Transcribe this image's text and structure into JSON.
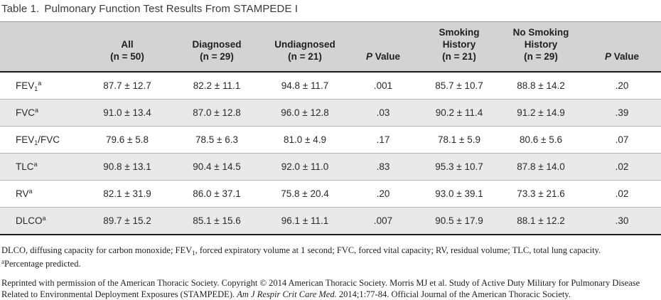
{
  "title": {
    "label": "Table 1.",
    "text": "Pulmonary Function Test Results From STAMPEDE I"
  },
  "colors": {
    "header_bg": "#d3d3d3",
    "row_alt_bg": "#e9e9e9",
    "rule_dark": "#1c1c1c",
    "rule_light": "#b5b5b5"
  },
  "header": {
    "parameter": "",
    "all": {
      "l1": "All",
      "l2": "(n = 50)"
    },
    "diagnosed": {
      "l1": "Diagnosed",
      "l2": "(n = 29)"
    },
    "undiagnosed": {
      "l1": "Undiagnosed",
      "l2": "(n = 21)"
    },
    "p1": {
      "p": "P",
      "rest": "Value"
    },
    "smoking": {
      "l1": "Smoking",
      "l2": "History",
      "l3": "(n = 21)"
    },
    "no_smoking": {
      "l1": "No Smoking",
      "l2": "History",
      "l3": "(n = 29)"
    },
    "p2": {
      "p": "P",
      "rest": "Value"
    }
  },
  "rows": [
    {
      "label": {
        "pre": "FEV",
        "sub": "1",
        "mid": "",
        "sup": "a"
      },
      "values": [
        "87.7 ± 12.7",
        "82.2 ± 11.1",
        "94.8 ± 11.7",
        ".001",
        "85.7 ± 10.7",
        "88.8 ± 14.2",
        ".20"
      ]
    },
    {
      "label": {
        "pre": "FVC",
        "sub": "",
        "mid": "",
        "sup": "a"
      },
      "values": [
        "91.0 ± 13.4",
        "87.0 ± 12.8",
        "96.0 ± 12.8",
        ".03",
        "90.2 ± 11.4",
        "91.2 ± 14.9",
        ".39"
      ]
    },
    {
      "label": {
        "pre": "FEV",
        "sub": "1",
        "mid": "/FVC",
        "sup": ""
      },
      "values": [
        "79.6 ± 5.8",
        "78.5 ± 6.3",
        "81.0 ± 4.9",
        ".17",
        "78.1 ± 5.9",
        "80.6 ± 5.6",
        ".07"
      ]
    },
    {
      "label": {
        "pre": "TLC",
        "sub": "",
        "mid": "",
        "sup": "a"
      },
      "values": [
        "90.8 ± 13.1",
        "90.4 ± 14.5",
        "92.0 ± 11.0",
        ".83",
        "95.3 ± 10.7",
        "87.8 ± 14.0",
        ".02"
      ]
    },
    {
      "label": {
        "pre": "RV",
        "sub": "",
        "mid": "",
        "sup": "a"
      },
      "values": [
        "82.1 ± 31.9",
        "86.0 ± 37.1",
        "75.8 ± 20.4",
        ".20",
        "93.0 ± 39.1",
        "73.3 ± 21.6",
        ".02"
      ]
    },
    {
      "label": {
        "pre": "DLCO",
        "sub": "",
        "mid": "",
        "sup": "a"
      },
      "values": [
        "89.7 ± 15.2",
        "85.1 ± 15.6",
        "96.1 ± 11.1",
        ".007",
        "90.5 ± 17.9",
        "88.1 ± 12.2",
        ".30"
      ]
    }
  ],
  "footnotes": {
    "abbrev": {
      "pre": "DLCO, diffusing capacity for carbon monoxide; FEV",
      "sub": "1",
      "post": ", forced expiratory volume at 1 second; FVC, forced vital capacity; RV, residual volume; TLC, total lung capacity."
    },
    "percent": {
      "sup": "a",
      "text": "Percentage predicted."
    },
    "reprint": {
      "part1": "Reprinted with permission of the American Thoracic Society. Copyright © 2014 American Thoracic Society. Morris MJ et al. Study of Active Duty Military for Pulmonary Disease Related to Environmental Deployment Exposures (STAMPEDE).",
      "journal": "Am J Respir Crit Care Med.",
      "part2": "2014;1:77-84. Official Journal of the American Thoracic Society."
    }
  }
}
